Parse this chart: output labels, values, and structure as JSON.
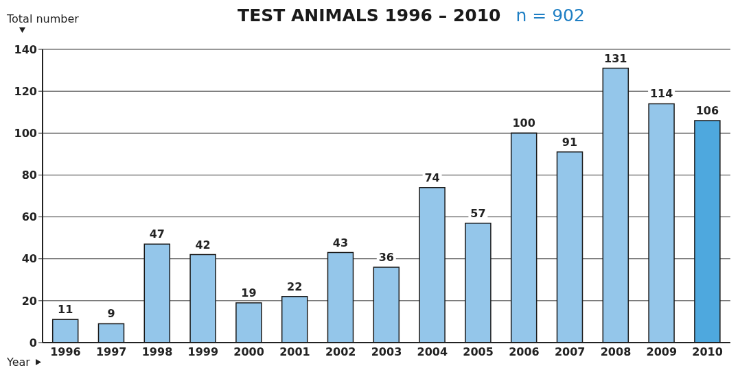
{
  "chart_data": {
    "type": "bar",
    "title": "TEST ANIMALS 1996 – 2010",
    "subtitle": "n = 902",
    "ylabel": "Total number",
    "xlabel": "Year",
    "categories": [
      "1996",
      "1997",
      "1998",
      "1999",
      "2000",
      "2001",
      "2002",
      "2003",
      "2004",
      "2005",
      "2006",
      "2007",
      "2008",
      "2009",
      "2010"
    ],
    "values": [
      11,
      9,
      47,
      42,
      19,
      22,
      43,
      36,
      74,
      57,
      100,
      91,
      131,
      114,
      106
    ],
    "colors": [
      "#94c6ea",
      "#94c6ea",
      "#94c6ea",
      "#94c6ea",
      "#94c6ea",
      "#94c6ea",
      "#94c6ea",
      "#94c6ea",
      "#94c6ea",
      "#94c6ea",
      "#94c6ea",
      "#94c6ea",
      "#94c6ea",
      "#94c6ea",
      "#4ea8de"
    ],
    "ylim": [
      0,
      140
    ],
    "yticks": [
      0,
      20,
      40,
      60,
      80,
      100,
      120,
      140
    ],
    "grid": "y",
    "data_labels": true
  }
}
